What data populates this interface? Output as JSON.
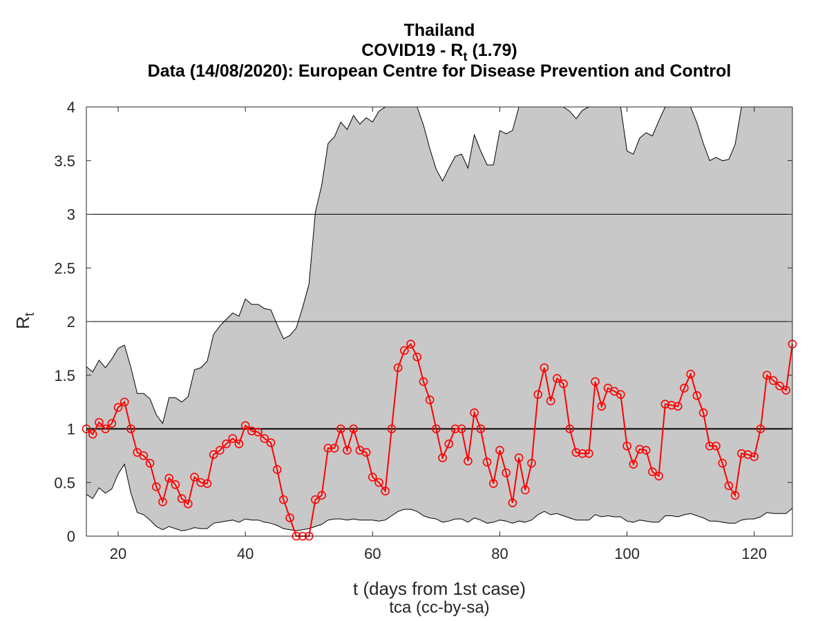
{
  "chart_data": {
    "type": "line",
    "title": "Thailand",
    "subtitle_main": "COVID19 - R",
    "subtitle_sub": "t",
    "subtitle_tail": " (1.79)",
    "source": "Data (14/08/2020): European Centre for Disease Prevention and Control",
    "xlabel": "t (days from 1st case)",
    "ylabel_main": "R",
    "ylabel_sub": "t",
    "credit": "tca (cc-by-sa)",
    "xlim": [
      15,
      126
    ],
    "ylim": [
      0,
      4
    ],
    "xticks": [
      20,
      40,
      60,
      80,
      100,
      120
    ],
    "yticks": [
      0,
      0.5,
      1,
      1.5,
      2,
      2.5,
      3,
      3.5,
      4
    ],
    "hlines": [
      1,
      2,
      3
    ],
    "colors": {
      "series": "#ff0000",
      "band": "#c8c8c8",
      "reference": "#000000"
    },
    "grid": false,
    "x": [
      15,
      16,
      17,
      18,
      19,
      20,
      21,
      22,
      23,
      24,
      25,
      26,
      27,
      28,
      29,
      30,
      31,
      32,
      33,
      34,
      35,
      36,
      37,
      38,
      39,
      40,
      41,
      42,
      43,
      44,
      45,
      46,
      47,
      48,
      49,
      50,
      51,
      52,
      53,
      54,
      55,
      56,
      57,
      58,
      59,
      60,
      61,
      62,
      63,
      64,
      65,
      66,
      67,
      68,
      69,
      70,
      71,
      72,
      73,
      74,
      75,
      76,
      77,
      78,
      79,
      80,
      81,
      82,
      83,
      84,
      85,
      86,
      87,
      88,
      89,
      90,
      91,
      92,
      93,
      94,
      95,
      96,
      97,
      98,
      99,
      100,
      101,
      102,
      103,
      104,
      105,
      106,
      107,
      108,
      109,
      110,
      111,
      112,
      113,
      114,
      115,
      116,
      117,
      118,
      119,
      120,
      121,
      122,
      123,
      124,
      125,
      126
    ],
    "series": [
      {
        "values": [
          1.0,
          0.95,
          1.06,
          1.0,
          1.05,
          1.2,
          1.25,
          1.0,
          0.78,
          0.75,
          0.68,
          0.46,
          0.32,
          0.54,
          0.48,
          0.35,
          0.3,
          0.55,
          0.5,
          0.49,
          0.76,
          0.8,
          0.86,
          0.91,
          0.86,
          1.03,
          0.98,
          0.97,
          0.91,
          0.87,
          0.62,
          0.34,
          0.17,
          0.0,
          0.0,
          0.0,
          0.34,
          0.38,
          0.82,
          0.82,
          1.0,
          0.8,
          1.0,
          0.8,
          0.78,
          0.55,
          0.5,
          0.42,
          1.0,
          1.57,
          1.73,
          1.79,
          1.67,
          1.44,
          1.27,
          1.0,
          0.73,
          0.86,
          1.0,
          1.0,
          0.7,
          1.15,
          1.0,
          0.69,
          0.49,
          0.8,
          0.59,
          0.31,
          0.73,
          0.43,
          0.68,
          1.32,
          1.57,
          1.26,
          1.47,
          1.42,
          1.0,
          0.78,
          0.77,
          0.77,
          1.44,
          1.21,
          1.38,
          1.35,
          1.32,
          0.84,
          0.67,
          0.81,
          0.8,
          0.6,
          0.56,
          1.23,
          1.22,
          1.21,
          1.38,
          1.51,
          1.31,
          1.15,
          0.84,
          0.84,
          0.68,
          0.47,
          0.38,
          0.77,
          0.76,
          0.74,
          1.0,
          1.5,
          1.45,
          1.4,
          1.36,
          1.79
        ]
      }
    ],
    "band_upper": [
      1.58,
      1.53,
      1.64,
      1.57,
      1.65,
      1.75,
      1.78,
      1.57,
      1.33,
      1.33,
      1.28,
      1.13,
      1.05,
      1.29,
      1.29,
      1.25,
      1.3,
      1.55,
      1.57,
      1.63,
      1.88,
      1.96,
      2.02,
      2.08,
      2.05,
      2.21,
      2.16,
      2.16,
      2.12,
      2.11,
      1.97,
      1.84,
      1.87,
      1.94,
      2.13,
      2.35,
      3.02,
      3.27,
      3.66,
      3.72,
      3.86,
      3.79,
      3.92,
      3.84,
      3.9,
      3.86,
      3.96,
      4.0,
      4.0,
      4.0,
      4.0,
      4.0,
      4.0,
      3.83,
      3.61,
      3.42,
      3.31,
      3.43,
      3.54,
      3.56,
      3.43,
      3.74,
      3.59,
      3.46,
      3.46,
      3.78,
      3.75,
      3.78,
      4.0,
      4.0,
      4.0,
      4.0,
      4.0,
      4.0,
      4.0,
      4.0,
      3.96,
      3.89,
      3.97,
      4.0,
      4.0,
      4.0,
      4.0,
      4.0,
      4.0,
      3.59,
      3.56,
      3.71,
      3.76,
      3.73,
      3.87,
      4.0,
      4.0,
      4.0,
      4.0,
      4.0,
      3.85,
      3.66,
      3.5,
      3.53,
      3.5,
      3.51,
      3.65,
      4.0,
      4.0,
      4.0,
      4.0,
      4.0,
      4.0,
      4.0,
      4.0,
      4.0
    ],
    "band_lower": [
      0.39,
      0.35,
      0.45,
      0.4,
      0.44,
      0.58,
      0.67,
      0.4,
      0.22,
      0.2,
      0.15,
      0.09,
      0.06,
      0.09,
      0.07,
      0.05,
      0.06,
      0.08,
      0.07,
      0.07,
      0.12,
      0.13,
      0.14,
      0.15,
      0.13,
      0.16,
      0.15,
      0.15,
      0.13,
      0.12,
      0.1,
      0.07,
      0.06,
      0.05,
      0.06,
      0.07,
      0.09,
      0.11,
      0.15,
      0.16,
      0.16,
      0.15,
      0.16,
      0.15,
      0.15,
      0.15,
      0.14,
      0.15,
      0.19,
      0.23,
      0.25,
      0.25,
      0.23,
      0.19,
      0.17,
      0.16,
      0.13,
      0.14,
      0.16,
      0.16,
      0.13,
      0.17,
      0.15,
      0.12,
      0.13,
      0.15,
      0.14,
      0.12,
      0.14,
      0.13,
      0.15,
      0.2,
      0.23,
      0.2,
      0.21,
      0.19,
      0.17,
      0.15,
      0.15,
      0.15,
      0.2,
      0.18,
      0.19,
      0.18,
      0.18,
      0.14,
      0.13,
      0.15,
      0.14,
      0.13,
      0.13,
      0.19,
      0.19,
      0.18,
      0.2,
      0.21,
      0.19,
      0.17,
      0.14,
      0.14,
      0.13,
      0.12,
      0.12,
      0.15,
      0.16,
      0.16,
      0.18,
      0.22,
      0.21,
      0.21,
      0.21,
      0.26
    ]
  }
}
